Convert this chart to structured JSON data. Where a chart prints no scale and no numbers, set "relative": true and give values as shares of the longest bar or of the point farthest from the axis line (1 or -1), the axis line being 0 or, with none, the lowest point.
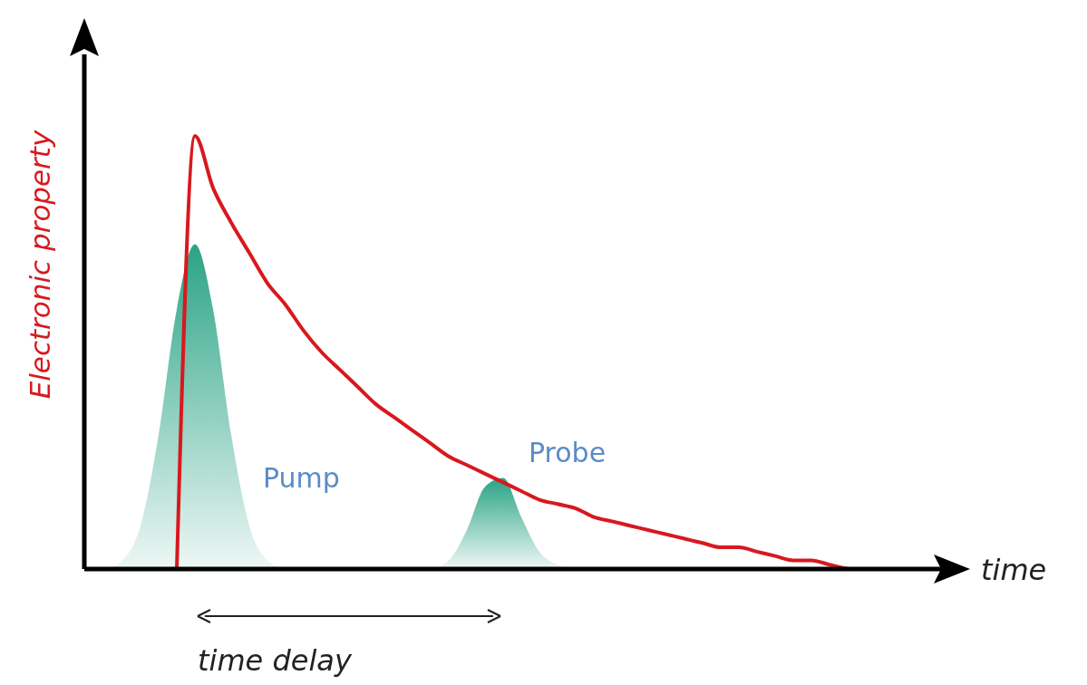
{
  "chart_data": {
    "type": "line",
    "relative": true,
    "xlabel": "time",
    "ylabel": "Electronic property",
    "annotations": [
      "time delay"
    ],
    "categories": [
      null,
      null,
      null,
      null,
      null,
      null,
      null,
      null,
      null,
      null,
      null,
      null,
      null,
      null,
      null,
      null,
      null,
      null,
      null,
      null,
      null,
      null,
      null,
      null,
      null,
      null,
      null,
      null,
      null,
      null,
      null,
      null,
      null,
      null,
      null,
      null,
      null,
      null,
      null,
      null,
      null,
      null,
      null,
      null
    ],
    "series": [
      {
        "name": "Pump",
        "type": "area",
        "color": "#2aa385",
        "values": [
          0,
          0,
          0.02,
          0.1,
          0.31,
          0.6,
          0.75,
          0.6,
          0.31,
          0.1,
          0.02,
          0,
          null,
          null,
          null,
          null,
          null,
          null,
          null,
          null,
          null,
          null,
          null,
          null,
          null,
          null,
          null,
          null,
          null,
          null,
          null,
          null,
          null,
          null,
          null,
          null,
          null,
          null,
          null,
          null,
          null,
          null,
          null,
          null
        ]
      },
      {
        "name": "Probe",
        "type": "area",
        "color": "#2aa385",
        "values": [
          null,
          null,
          null,
          null,
          null,
          null,
          null,
          null,
          null,
          null,
          null,
          null,
          null,
          null,
          null,
          null,
          null,
          null,
          null,
          0,
          0.02,
          0.09,
          0.19,
          0.21,
          0.12,
          0.04,
          0.01,
          0,
          null,
          null,
          null,
          null,
          null,
          null,
          null,
          null,
          null,
          null,
          null,
          null,
          null,
          null,
          null,
          null
        ]
      },
      {
        "color": "#d7191f",
        "values": [
          null,
          null,
          null,
          null,
          null,
          0,
          1,
          0.88,
          0.8,
          0.73,
          0.66,
          0.61,
          0.55,
          0.5,
          0.46,
          0.42,
          0.38,
          0.35,
          0.32,
          0.29,
          0.26,
          0.24,
          0.22,
          0.2,
          0.18,
          0.16,
          0.15,
          0.14,
          0.12,
          0.11,
          0.1,
          0.09,
          0.08,
          0.07,
          0.06,
          0.05,
          0.05,
          0.04,
          0.03,
          0.02,
          0.02,
          0.01,
          0,
          null
        ]
      }
    ]
  }
}
